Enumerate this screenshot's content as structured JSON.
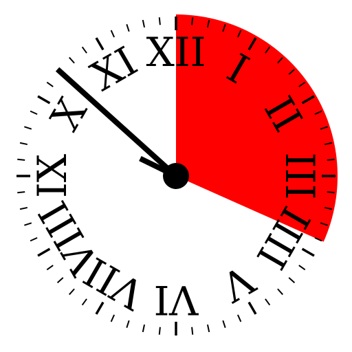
{
  "clock": {
    "numerals": [
      "XII",
      "I",
      "II",
      "III",
      "IIII",
      "V",
      "VI",
      "VII",
      "VIII",
      "IX",
      "X",
      "XI"
    ],
    "time_shown": {
      "hour": 9,
      "minute": 52
    },
    "elapsed_sector_minutes": {
      "from": 0,
      "to": 19
    },
    "colors": {
      "face": "#ffffff",
      "sector": "#ff0000",
      "ticks": "#000000",
      "hands": "#000000",
      "numerals": "#000000"
    },
    "icons": {
      "hour_hand": "hour-hand-icon",
      "minute_hand": "minute-hand-icon",
      "hub": "center-hub-icon"
    }
  }
}
